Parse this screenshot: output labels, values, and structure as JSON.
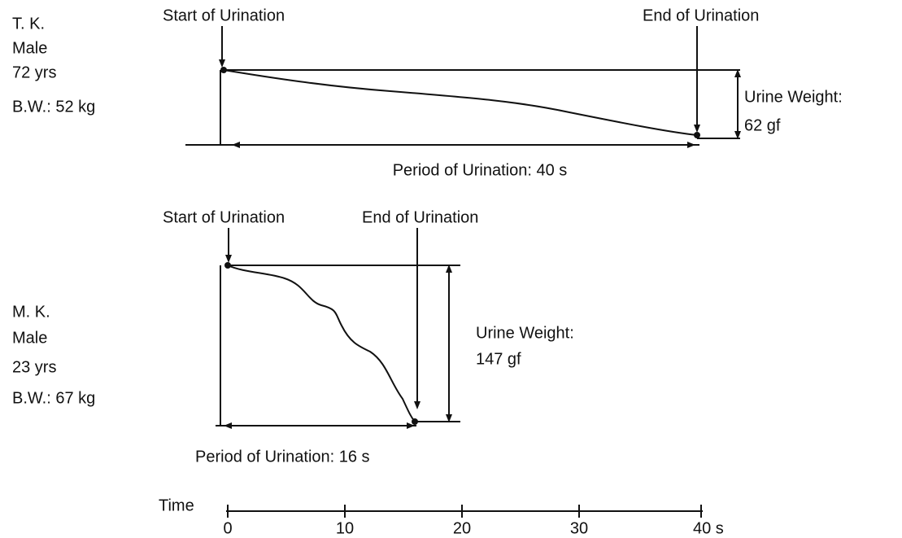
{
  "panels": [
    {
      "subject": [
        "T. K.",
        "Male",
        "72 yrs",
        "B.W.: 52 kg"
      ],
      "start_label": "Start of Urination",
      "end_label": "End of Urination",
      "weight_label": "Urine Weight:",
      "weight": "62 gf",
      "period": "Period of Urination: 40 s"
    },
    {
      "subject": [
        "M. K.",
        "Male",
        "23 yrs",
        "B.W.: 67 kg"
      ],
      "start_label": "Start of Urination",
      "end_label": "End of Urination",
      "weight_label": "Urine Weight:",
      "weight": "147 gf",
      "period": "Period of Urination: 16 s"
    }
  ],
  "time_axis": {
    "label": "Time",
    "ticks": [
      "0",
      "10",
      "20",
      "30",
      "40 s"
    ]
  }
}
